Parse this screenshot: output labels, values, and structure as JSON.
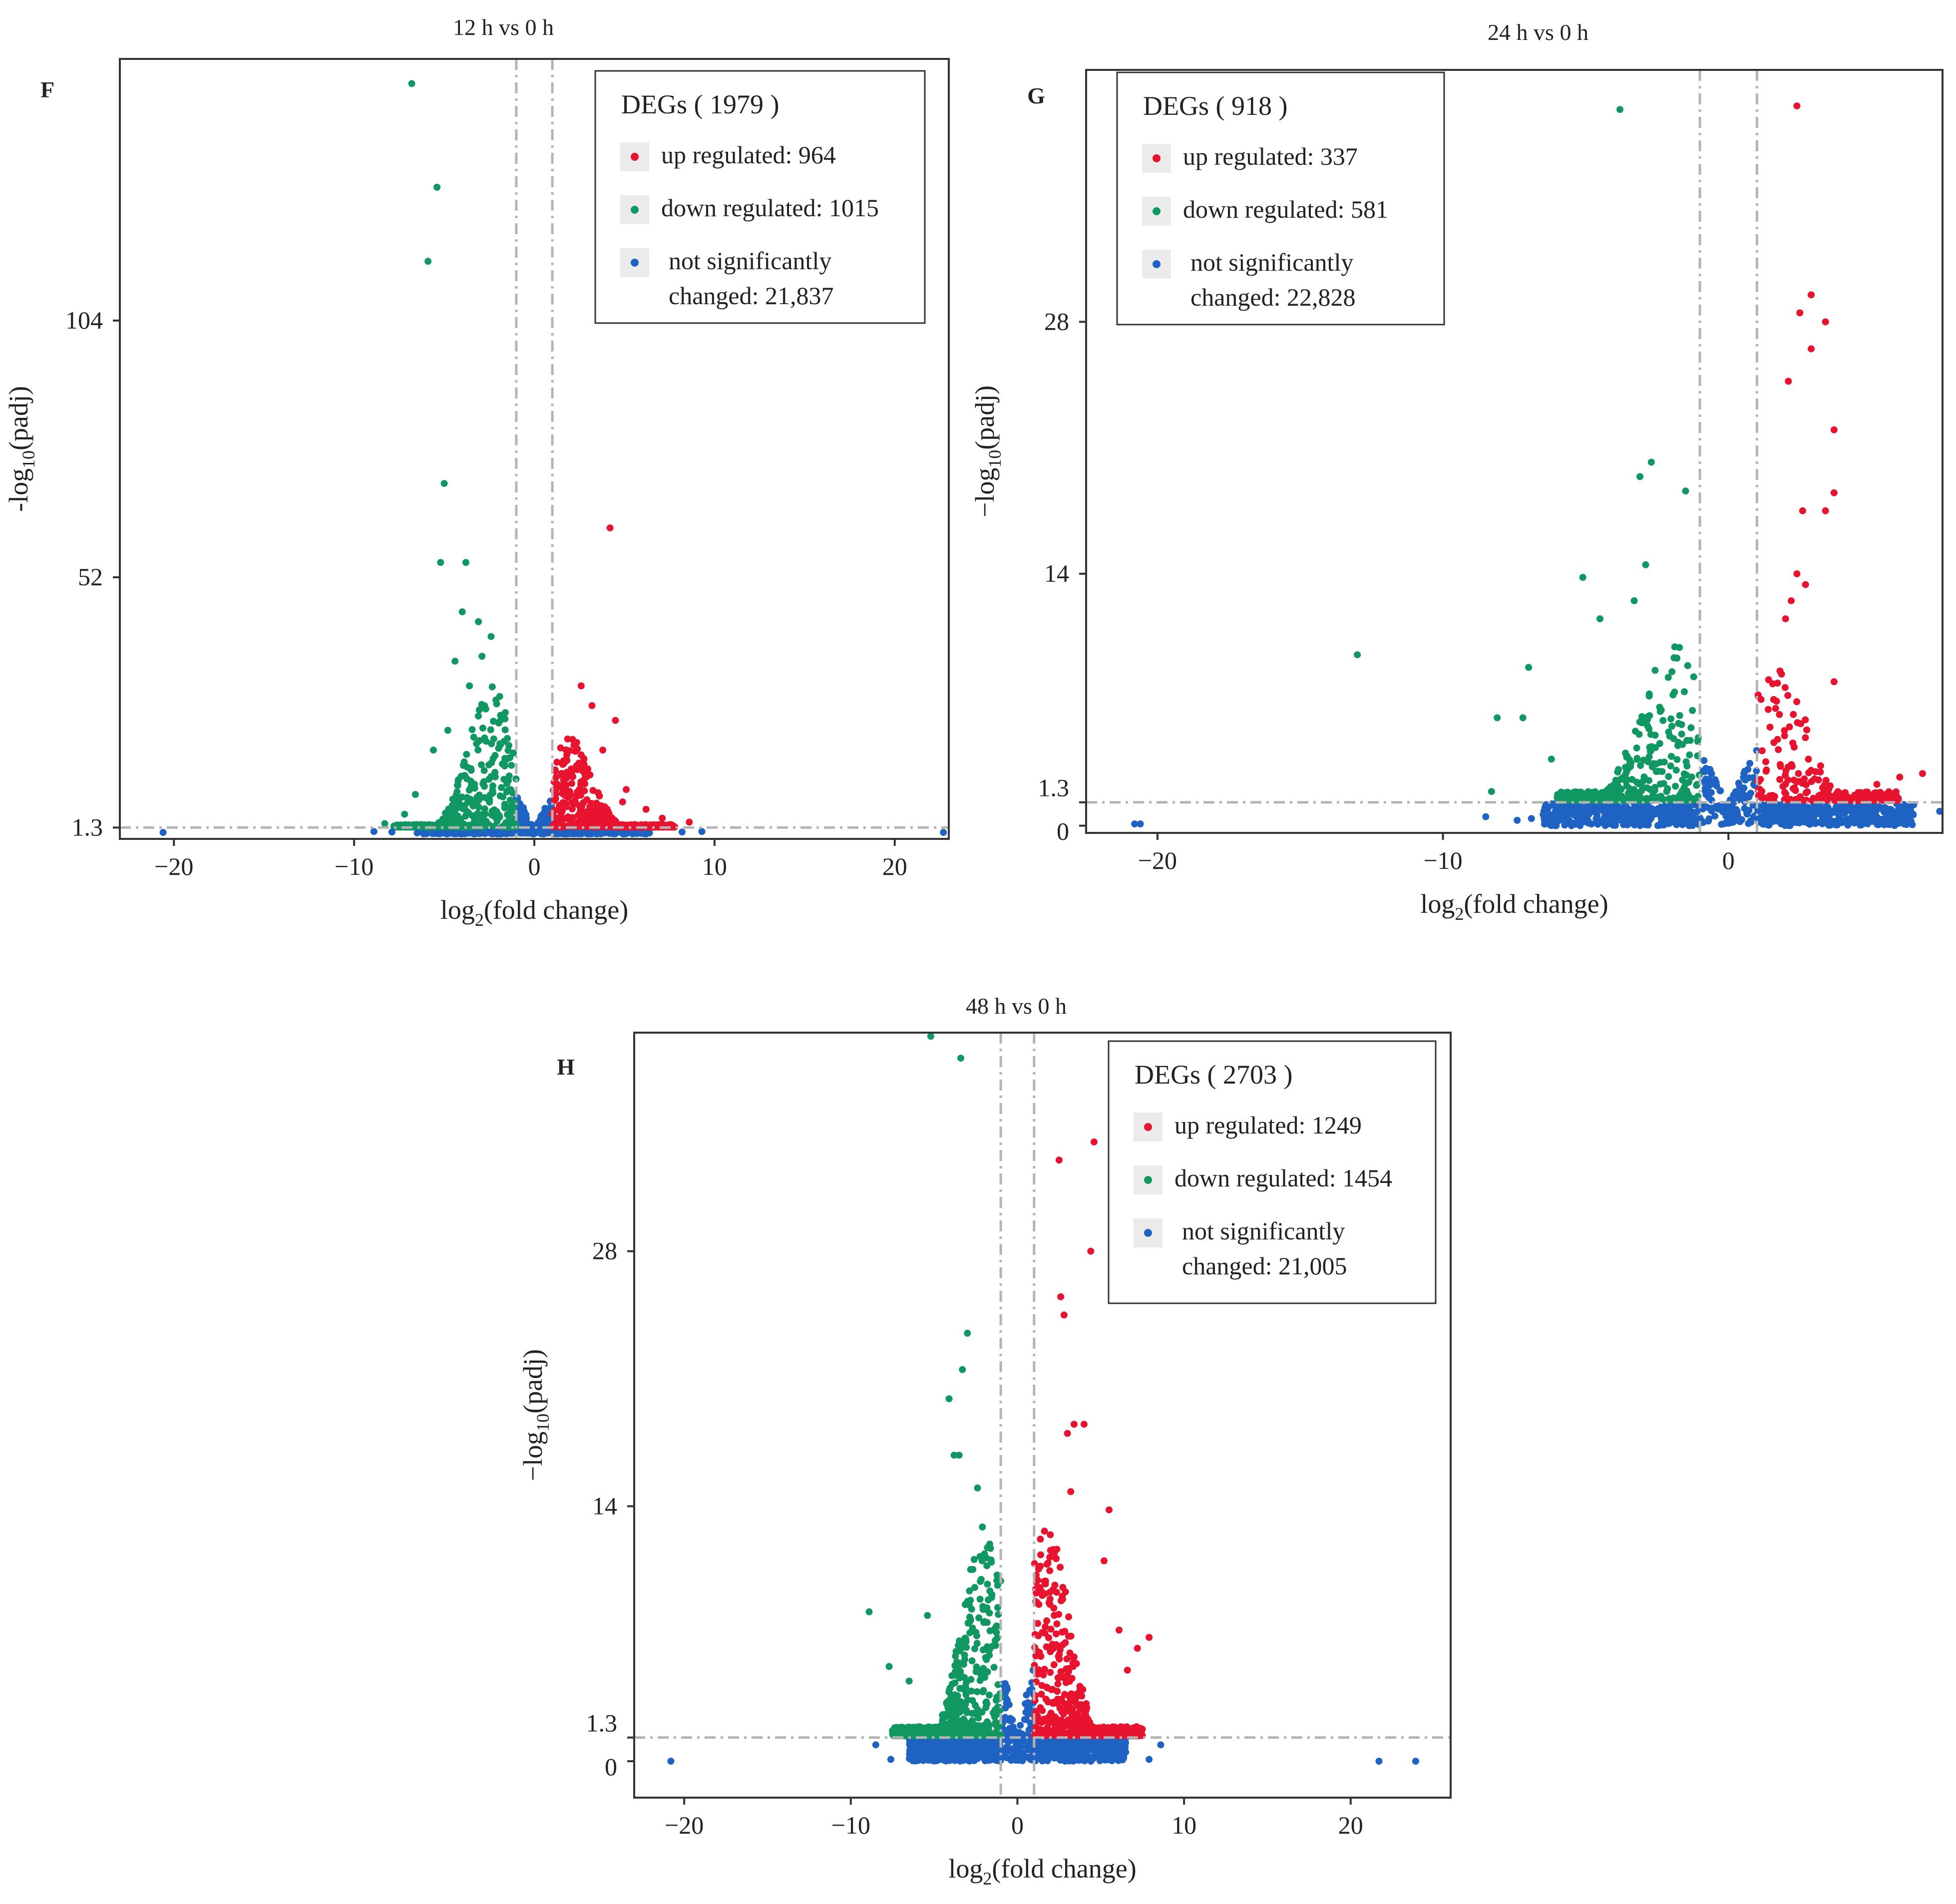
{
  "colors": {
    "up": "#e8132f",
    "down": "#119761",
    "ns": "#1e63c4",
    "threshold_line": "#b4b4b4",
    "axis": "#333333"
  },
  "chart_data": [
    {
      "type": "scatter",
      "panel_label": "F",
      "title": "12 h vs 0 h",
      "xlabel_prefix": "log",
      "xlabel_sub": "2",
      "xlabel_suffix": "(fold change)",
      "ylabel_prefix": "-log",
      "ylabel_sub": "10",
      "ylabel_suffix": "(padj)",
      "xlim": [
        -23,
        23
      ],
      "ylim": [
        -1,
        157
      ],
      "xticks": [
        -20,
        -10,
        0,
        10,
        20
      ],
      "xtick_labels": [
        "−20",
        "−10",
        "0",
        "10",
        "20"
      ],
      "yticks": [
        1.3,
        52,
        104
      ],
      "ytick_labels": [
        "1.3",
        "52",
        "104"
      ],
      "thresholds": {
        "fc": [
          -1,
          1
        ],
        "padj_line": 1.3
      },
      "legend": {
        "title": "DEGs ( 1979 )",
        "up_label": "up regulated: 964",
        "down_label": "down regulated: 1015",
        "ns_label_1": "not significantly",
        "ns_label_2": "changed: 21,837",
        "placement": "top-right"
      },
      "points": {
        "up": [
          [
            4.2,
            62
          ],
          [
            2.6,
            30
          ],
          [
            3.2,
            26
          ],
          [
            4.5,
            23
          ],
          [
            2.2,
            18
          ],
          [
            3.8,
            17
          ],
          [
            5.1,
            9
          ],
          [
            6.2,
            5
          ],
          [
            8.6,
            2.4
          ],
          [
            7.1,
            3.2
          ],
          [
            4.9,
            6.5
          ],
          [
            1.6,
            12
          ]
        ],
        "down": [
          [
            -6.8,
            152
          ],
          [
            -5.4,
            131
          ],
          [
            -5.9,
            116
          ],
          [
            -5.0,
            71
          ],
          [
            -5.2,
            55
          ],
          [
            -3.8,
            55
          ],
          [
            -4.0,
            45
          ],
          [
            -3.1,
            43
          ],
          [
            -2.4,
            40
          ],
          [
            -4.4,
            35
          ],
          [
            -7.2,
            4
          ],
          [
            -8.3,
            2.1
          ],
          [
            -6.6,
            8
          ],
          [
            -5.6,
            17
          ],
          [
            -3.6,
            30
          ],
          [
            -2.9,
            36
          ],
          [
            -4.8,
            21
          ]
        ],
        "ns": [
          [
            -20.6,
            0.3
          ],
          [
            22.7,
            0.3
          ],
          [
            -8.9,
            0.5
          ],
          [
            9.3,
            0.5
          ],
          [
            8.2,
            0.4
          ],
          [
            -7.9,
            0.4
          ],
          [
            -6.5,
            0.2
          ]
        ]
      },
      "clouds": {
        "up": {
          "x": [
            1,
            7.8
          ],
          "peak_x": 1.9,
          "spread": 1.4,
          "max_y": 20,
          "n": 500
        },
        "down": {
          "x": [
            -7.8,
            -1
          ],
          "peak_x": -2.4,
          "spread": 1.4,
          "max_y": 30,
          "n": 520
        },
        "ns": {
          "x": [
            -6.2,
            6.4
          ],
          "n": 900
        }
      }
    },
    {
      "type": "scatter",
      "panel_label": "G",
      "title": "24 h vs 0 h",
      "xlabel_prefix": "log",
      "xlabel_sub": "2",
      "xlabel_suffix": "(fold change)",
      "ylabel_prefix": "−log",
      "ylabel_sub": "10",
      "ylabel_suffix": "(padj)",
      "xlim": [
        -22.5,
        7.5
      ],
      "ylim": [
        -0.4,
        42
      ],
      "xticks": [
        -20,
        -10,
        0
      ],
      "xtick_labels": [
        "−20",
        "−10",
        "0"
      ],
      "yticks": [
        0,
        1.3,
        14,
        28
      ],
      "ytick_labels": [
        "0",
        "1.3",
        "14",
        "28"
      ],
      "thresholds": {
        "fc": [
          -1,
          1
        ],
        "padj_line": 1.3
      },
      "legend": {
        "title": "DEGs ( 918 )",
        "up_label": "up regulated: 337",
        "down_label": "down regulated: 581",
        "ns_label_1": "not significantly",
        "ns_label_2": "changed: 22,828",
        "placement": "top-left"
      },
      "points": {
        "up": [
          [
            2.4,
            40
          ],
          [
            2.9,
            29.5
          ],
          [
            2.5,
            28.5
          ],
          [
            3.4,
            28
          ],
          [
            2.9,
            26.5
          ],
          [
            2.1,
            24.7
          ],
          [
            3.7,
            22
          ],
          [
            3.7,
            18.5
          ],
          [
            2.6,
            17.5
          ],
          [
            3.4,
            17.5
          ],
          [
            3.7,
            8
          ],
          [
            2.4,
            14
          ],
          [
            2.7,
            13.4
          ],
          [
            2.2,
            12.5
          ],
          [
            2.0,
            11.5
          ],
          [
            6.8,
            2.9
          ],
          [
            6.0,
            2.7
          ],
          [
            5.2,
            2.3
          ],
          [
            4.7,
            1.8
          ]
        ],
        "down": [
          [
            -3.8,
            39.8
          ],
          [
            -2.7,
            20.2
          ],
          [
            -3.1,
            19.4
          ],
          [
            -1.5,
            18.6
          ],
          [
            -2.9,
            14.5
          ],
          [
            -5.1,
            13.8
          ],
          [
            -13.0,
            9.5
          ],
          [
            -7.0,
            8.8
          ],
          [
            -8.1,
            6
          ],
          [
            -7.2,
            6
          ],
          [
            -8.3,
            1.9
          ],
          [
            -5.4,
            1.8
          ],
          [
            -6.2,
            3.7
          ],
          [
            -4.5,
            11.5
          ],
          [
            -3.3,
            12.5
          ]
        ],
        "ns": [
          [
            -20.6,
            0.1
          ],
          [
            -20.8,
            0.1
          ],
          [
            -8.5,
            0.5
          ],
          [
            -7.4,
            0.3
          ],
          [
            -6.9,
            0.4
          ],
          [
            6.2,
            0.5
          ],
          [
            7.4,
            0.8
          ],
          [
            5.5,
            0.4
          ]
        ]
      },
      "clouds": {
        "up": {
          "x": [
            1,
            6
          ],
          "peak_x": 1.6,
          "spread": 1.3,
          "max_y": 9,
          "n": 230
        },
        "down": {
          "x": [
            -6,
            -1
          ],
          "peak_x": -1.9,
          "spread": 1.4,
          "max_y": 10,
          "n": 380
        },
        "ns": {
          "x": [
            -6.5,
            6.5
          ],
          "n": 900
        }
      }
    },
    {
      "type": "scatter",
      "panel_label": "H",
      "title": "48 h vs 0 h",
      "xlabel_prefix": "log",
      "xlabel_sub": "2",
      "xlabel_suffix": "(fold change)",
      "ylabel_prefix": "−log",
      "ylabel_sub": "10",
      "ylabel_suffix": "(padj)",
      "xlim": [
        -23,
        26
      ],
      "ylim": [
        -2,
        40
      ],
      "xticks": [
        -20,
        -10,
        0,
        10,
        20
      ],
      "xtick_labels": [
        "−20",
        "−10",
        "0",
        "10",
        "20"
      ],
      "yticks": [
        0,
        1.3,
        14,
        28
      ],
      "ytick_labels": [
        "0",
        "1.3",
        "14",
        "28"
      ],
      "thresholds": {
        "fc": [
          -1,
          1
        ],
        "padj_line": 1.3
      },
      "legend": {
        "title": "DEGs ( 2703 )",
        "up_label": "up regulated: 1249",
        "down_label": "down regulated: 1454",
        "ns_label_1": "not significantly",
        "ns_label_2": "changed: 21,005",
        "placement": "top-right"
      },
      "points": {
        "up": [
          [
            4.6,
            34
          ],
          [
            2.5,
            33
          ],
          [
            4.4,
            28
          ],
          [
            2.6,
            25.5
          ],
          [
            2.8,
            24.5
          ],
          [
            3.4,
            18.5
          ],
          [
            4.0,
            18.5
          ],
          [
            3.0,
            18
          ],
          [
            5.5,
            13.8
          ],
          [
            3.2,
            14.8
          ],
          [
            6.1,
            7.2
          ],
          [
            7.9,
            6.8
          ],
          [
            7.2,
            6.2
          ],
          [
            6.6,
            5
          ],
          [
            5.2,
            11
          ]
        ],
        "down": [
          [
            -5.2,
            39.8
          ],
          [
            -3.4,
            38.6
          ],
          [
            -3.0,
            23.5
          ],
          [
            -3.3,
            21.5
          ],
          [
            -4.1,
            19.9
          ],
          [
            -3.8,
            16.8
          ],
          [
            -3.5,
            16.8
          ],
          [
            -2.4,
            15
          ],
          [
            -8.9,
            8.2
          ],
          [
            -7.7,
            5.2
          ],
          [
            -6.5,
            4.4
          ],
          [
            -5.4,
            8
          ]
        ],
        "ns": [
          [
            -20.8,
            0
          ],
          [
            21.7,
            0
          ],
          [
            23.9,
            0
          ],
          [
            -8.5,
            0.9
          ],
          [
            -7.6,
            0.1
          ],
          [
            8.6,
            0.9
          ],
          [
            7.9,
            0.1
          ],
          [
            6.5,
            0.5
          ]
        ]
      },
      "clouds": {
        "up": {
          "x": [
            1,
            7.5
          ],
          "peak_x": 1.8,
          "spread": 1.5,
          "max_y": 13,
          "n": 650
        },
        "down": {
          "x": [
            -7.5,
            -1
          ],
          "peak_x": -2.0,
          "spread": 1.5,
          "max_y": 13,
          "n": 700
        },
        "ns": {
          "x": [
            -6.5,
            6.5
          ],
          "n": 900
        }
      }
    }
  ]
}
